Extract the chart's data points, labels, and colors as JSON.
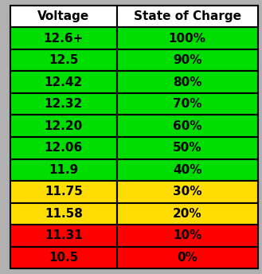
{
  "header": [
    "Voltage",
    "State of Charge"
  ],
  "rows": [
    [
      "12.6+",
      "100%"
    ],
    [
      "12.5",
      "90%"
    ],
    [
      "12.42",
      "80%"
    ],
    [
      "12.32",
      "70%"
    ],
    [
      "12.20",
      "60%"
    ],
    [
      "12.06",
      "50%"
    ],
    [
      "11.9",
      "40%"
    ],
    [
      "11.75",
      "30%"
    ],
    [
      "11.58",
      "20%"
    ],
    [
      "11.31",
      "10%"
    ],
    [
      "10.5",
      "0%"
    ]
  ],
  "row_colors": [
    "#00dd00",
    "#00dd00",
    "#00dd00",
    "#00dd00",
    "#00dd00",
    "#00dd00",
    "#00dd00",
    "#ffdd00",
    "#ffdd00",
    "#ff0000",
    "#ff0000"
  ],
  "header_bg": "#ffffff",
  "header_text_color": "#000000",
  "cell_text_color": "#000000",
  "outer_bg_color": "#b0b0b0",
  "figsize": [
    3.29,
    3.44
  ],
  "dpi": 100,
  "fontsize": 11
}
